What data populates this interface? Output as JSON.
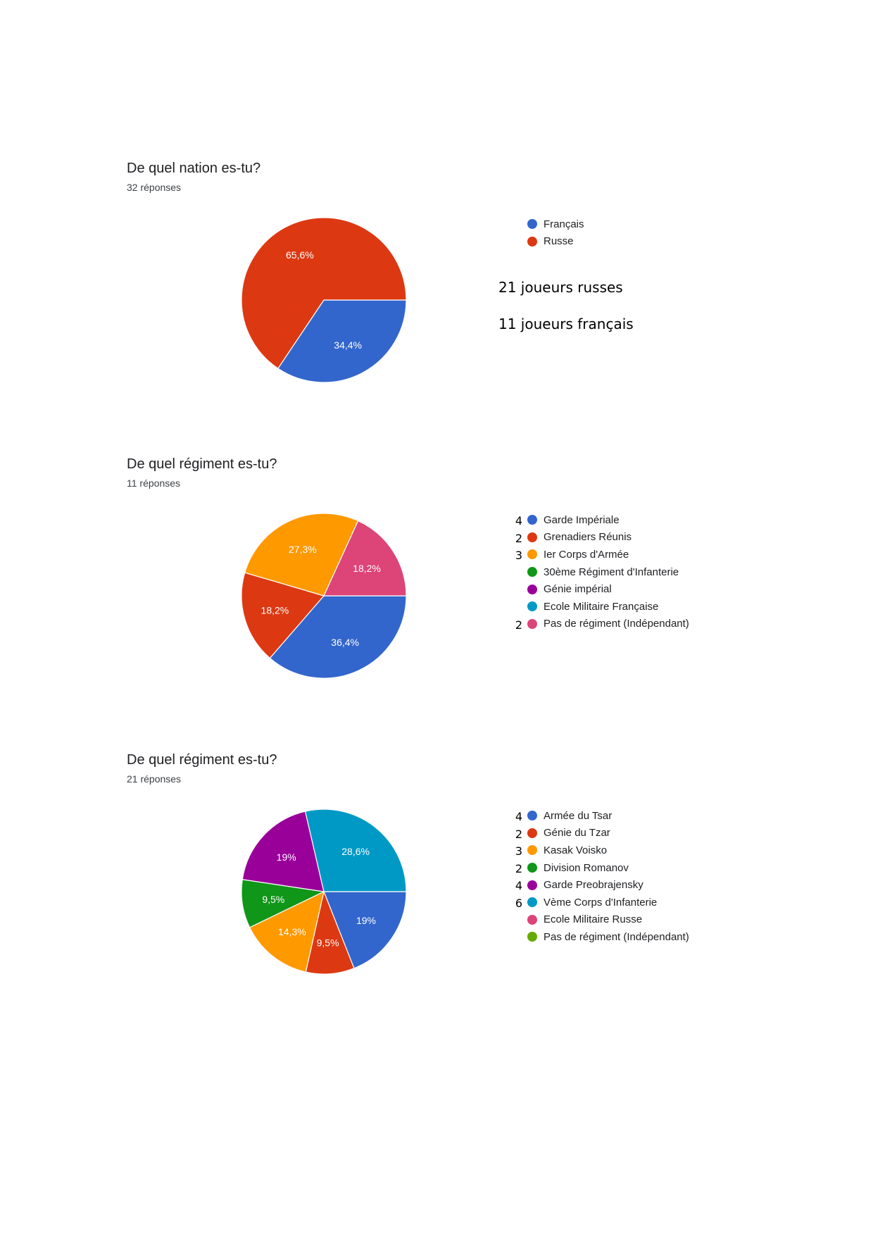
{
  "sections": [
    {
      "title": "De quel nation es-tu?",
      "responses": "32 réponses",
      "notes": [
        "21 joueurs russes",
        "11 joueurs français"
      ]
    },
    {
      "title": "De quel régiment es-tu?",
      "responses": "11 réponses"
    },
    {
      "title": "De quel régiment es-tu?",
      "responses": "21 réponses"
    }
  ],
  "chart_data": [
    {
      "type": "pie",
      "title": "De quel nation es-tu?",
      "categories": [
        "Français",
        "Russe"
      ],
      "values": [
        34.4,
        65.6
      ],
      "labels": [
        "34,4%",
        "65,6%"
      ],
      "colors": [
        "#3366cc",
        "#dc3912"
      ],
      "counts": [
        "",
        ""
      ],
      "legend": "right"
    },
    {
      "type": "pie",
      "title": "De quel régiment es-tu?",
      "categories": [
        "Garde Impériale",
        "Grenadiers Réunis",
        "Ier Corps d'Armée",
        "30ème Régiment d'Infanterie",
        "Génie impérial",
        "Ecole Militaire Française",
        "Pas de régiment (Indépendant)"
      ],
      "values": [
        36.4,
        18.2,
        27.3,
        0,
        0,
        0,
        18.2
      ],
      "labels": [
        "36,4%",
        "18,2%",
        "27,3%",
        "",
        "",
        "",
        "18,2%"
      ],
      "colors": [
        "#3366cc",
        "#dc3912",
        "#ff9900",
        "#109618",
        "#990099",
        "#0099c6",
        "#dd4477"
      ],
      "counts": [
        "4",
        "2",
        "3",
        "",
        "",
        "",
        "2"
      ],
      "legend": "right"
    },
    {
      "type": "pie",
      "title": "De quel régiment es-tu?",
      "categories": [
        "Armée du Tsar",
        "Génie du Tzar",
        "Kasak Voisko",
        "Division Romanov",
        "Garde Preobrajensky",
        "Vème Corps d'Infanterie",
        "Ecole Militaire Russe",
        "Pas de régiment (Indépendant)"
      ],
      "values": [
        19,
        9.5,
        14.3,
        9.5,
        19,
        28.6,
        0,
        0
      ],
      "labels": [
        "19%",
        "9,5%",
        "14,3%",
        "9,5%",
        "19%",
        "28,6%",
        "",
        ""
      ],
      "colors": [
        "#3366cc",
        "#dc3912",
        "#ff9900",
        "#109618",
        "#990099",
        "#0099c6",
        "#dd4477",
        "#66aa00"
      ],
      "counts": [
        "4",
        "2",
        "3",
        "2",
        "4",
        "6",
        "",
        ""
      ],
      "legend": "right"
    }
  ]
}
